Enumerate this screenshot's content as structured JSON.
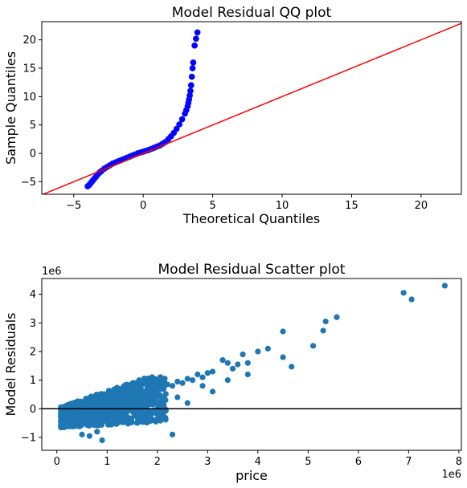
{
  "chart_data": [
    {
      "type": "scatter",
      "title": "Model Residual QQ plot",
      "xlabel": "Theoretical Quantiles",
      "ylabel": "Sample Quantiles",
      "xlim": [
        -7.3,
        22.9
      ],
      "ylim": [
        -7.2,
        23.2
      ],
      "xticks": [
        -5,
        0,
        5,
        10,
        15,
        20
      ],
      "yticks": [
        -5,
        0,
        5,
        10,
        15,
        20
      ],
      "grid": false,
      "point_color": "#0000ff",
      "edge_color": "#1f1fff",
      "reference_line": {
        "color": "#ff0000",
        "slope": 1,
        "intercept": 0
      },
      "series": [
        {
          "x": [
            -4.0,
            -3.9,
            -3.8,
            -3.7,
            -3.6,
            -3.5,
            -3.4,
            -3.3,
            -3.2,
            -3.1,
            -3.0,
            -2.8,
            -2.6,
            -2.4,
            -2.2,
            -2.0,
            -1.8,
            -1.6,
            -1.4,
            -1.2,
            -1.0,
            -0.8,
            -0.6,
            -0.4,
            -0.2,
            0.0,
            0.2,
            0.4,
            0.6,
            0.8,
            1.0,
            1.2,
            1.4,
            1.6,
            1.8,
            2.0,
            2.2,
            2.4,
            2.6,
            2.8,
            3.0,
            3.1,
            3.2,
            3.25,
            3.3,
            3.35,
            3.4,
            3.45,
            3.5,
            3.55,
            3.6,
            3.7,
            3.8,
            3.9
          ],
          "y": [
            -5.8,
            -5.6,
            -5.3,
            -5.0,
            -4.7,
            -4.4,
            -4.1,
            -3.8,
            -3.5,
            -3.3,
            -3.1,
            -2.7,
            -2.4,
            -2.1,
            -1.8,
            -1.6,
            -1.4,
            -1.2,
            -1.0,
            -0.8,
            -0.6,
            -0.4,
            -0.2,
            0.0,
            0.15,
            0.3,
            0.45,
            0.6,
            0.8,
            1.0,
            1.2,
            1.4,
            1.7,
            2.0,
            2.5,
            3.0,
            3.6,
            4.3,
            5.1,
            6.0,
            7.0,
            7.6,
            8.3,
            8.9,
            9.5,
            10.2,
            11.0,
            12.0,
            13.5,
            15.0,
            16.0,
            19.0,
            20.2,
            21.3
          ]
        }
      ]
    },
    {
      "type": "scatter",
      "title": "Model Residual Scatter plot",
      "xlabel": "price",
      "ylabel": "Model Residuals",
      "x_offset_label": "1e6",
      "y_offset_label": "1e6",
      "xlim": [
        -0.3,
        8.05
      ],
      "ylim": [
        -1.45,
        4.55
      ],
      "xticks": [
        0,
        1,
        2,
        3,
        4,
        5,
        6,
        7,
        8
      ],
      "yticks": [
        -1,
        0,
        1,
        2,
        3,
        4
      ],
      "grid": false,
      "point_color": "#1f77b4",
      "reference_line": {
        "color": "#000000",
        "y": 0
      },
      "series": [
        {
          "x": [
            7.72,
            6.9,
            7.06,
            5.57,
            5.35,
            5.3,
            5.1,
            4.5,
            4.5,
            4.67,
            4.2,
            4.0,
            3.8,
            3.7,
            3.5,
            3.4,
            3.3,
            3.1,
            3.0,
            2.9,
            2.8,
            2.7,
            2.6,
            2.5,
            2.4,
            2.3,
            2.2,
            2.1,
            2.0,
            1.9,
            1.8,
            1.7,
            1.6,
            1.5,
            1.4,
            1.3,
            1.2,
            1.1,
            1.0,
            0.9,
            0.8,
            0.7,
            0.6,
            0.5,
            0.4,
            0.3,
            0.2,
            0.1,
            0.65,
            0.9,
            2.3,
            3.6,
            3.8,
            2.0,
            1.7,
            2.9,
            3.1,
            3.4,
            2.6,
            1.2,
            0.8,
            0.5,
            2.4,
            2.0,
            1.3
          ],
          "y": [
            4.3,
            4.05,
            3.82,
            3.2,
            3.05,
            2.73,
            2.2,
            2.7,
            1.8,
            1.47,
            2.1,
            2.0,
            1.6,
            1.9,
            1.4,
            1.6,
            1.7,
            1.3,
            1.25,
            1.1,
            1.2,
            1.0,
            1.05,
            0.9,
            0.95,
            0.8,
            0.85,
            0.7,
            0.75,
            0.6,
            0.7,
            0.55,
            0.5,
            0.45,
            0.4,
            0.35,
            0.3,
            0.25,
            0.2,
            0.1,
            0.05,
            0.0,
            -0.1,
            -0.2,
            -0.3,
            -0.4,
            -0.1,
            0.05,
            -0.95,
            -1.1,
            -0.9,
            1.55,
            1.2,
            -0.2,
            0.1,
            0.8,
            0.6,
            1.0,
            0.2,
            -0.5,
            -0.8,
            -0.9,
            0.4,
            0.0,
            -0.3
          ]
        }
      ]
    }
  ]
}
